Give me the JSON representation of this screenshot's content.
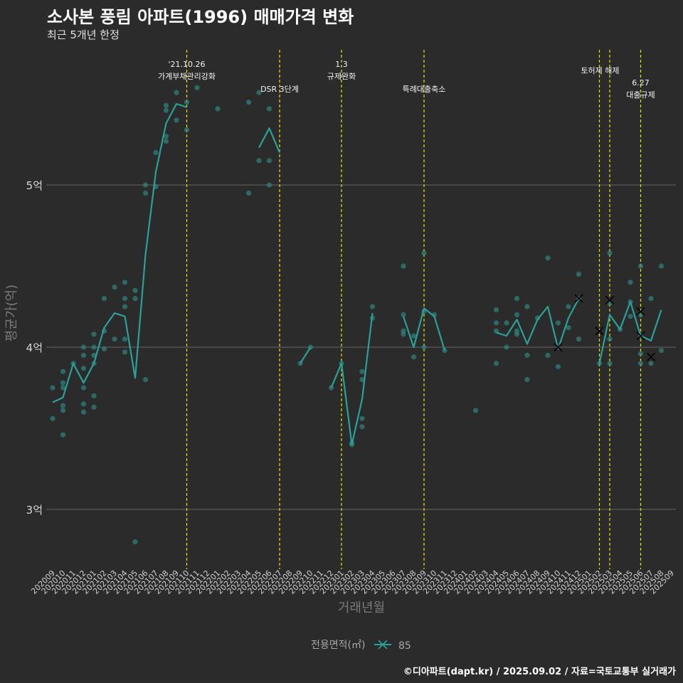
{
  "header": {
    "title": "소사본 풍림 아파트(1996) 매매가격 변화",
    "subtitle": "최근 5개년 한정"
  },
  "footer": {
    "credit": "©디아파트(dapt.kr) / 2025.09.02 / 자료=국토교통부 실거래가"
  },
  "colors": {
    "line": "#2aa198",
    "point": "#2e8b85",
    "guide": "#e6e600",
    "grid": "#5a5a5a",
    "cancel": "#000000"
  },
  "chart_data": {
    "type": "line",
    "title": "소사본 풍림 아파트(1996) 매매가격 변화",
    "xlabel": "거래년월",
    "ylabel": "평균가(억)",
    "ylim": [
      2.65,
      5.9
    ],
    "yticks": [
      {
        "value": 3,
        "label": "3억"
      },
      {
        "value": 4,
        "label": "4억"
      },
      {
        "value": 5,
        "label": "5억"
      }
    ],
    "months": [
      "202009",
      "202010",
      "202011",
      "202012",
      "202101",
      "202102",
      "202103",
      "202104",
      "202105",
      "202106",
      "202107",
      "202108",
      "202109",
      "202110",
      "202111",
      "202112",
      "202201",
      "202202",
      "202203",
      "202204",
      "202205",
      "202206",
      "202207",
      "202208",
      "202209",
      "202210",
      "202211",
      "202212",
      "202301",
      "202302",
      "202303",
      "202304",
      "202305",
      "202306",
      "202307",
      "202308",
      "202309",
      "202310",
      "202311",
      "202312",
      "202401",
      "202402",
      "202403",
      "202404",
      "202405",
      "202406",
      "202407",
      "202408",
      "202409",
      "202410",
      "202411",
      "202412",
      "202501",
      "202502",
      "202503",
      "202504",
      "202505",
      "202506",
      "202507",
      "202508",
      "202509"
    ],
    "legend": {
      "title": "전용면적(㎡)",
      "entries": [
        "85"
      ]
    },
    "events": [
      {
        "month": "202110",
        "lines": [
          "'21.10.26",
          "가계부채관리강화"
        ]
      },
      {
        "month": "202207",
        "lines": [
          "DSR 3단계"
        ]
      },
      {
        "month": "202301",
        "lines": [
          "1.3",
          "규제완화"
        ]
      },
      {
        "month": "202309",
        "lines": [
          "특례대출축소"
        ]
      },
      {
        "month": "202502",
        "lines": [
          "토허제 해제"
        ]
      },
      {
        "month": "202503",
        "lines": []
      },
      {
        "month": "202506",
        "lines": [
          "6.27",
          "대출규제"
        ]
      }
    ],
    "series": [
      {
        "name": "85",
        "segments": [
          [
            [
              "202009",
              3.66
            ],
            [
              "202010",
              3.69
            ],
            [
              "202011",
              3.9
            ],
            [
              "202012",
              3.78
            ],
            [
              "202101",
              3.9
            ],
            [
              "202102",
              4.12
            ],
            [
              "202103",
              4.21
            ],
            [
              "202104",
              4.19
            ],
            [
              "202105",
              3.81
            ],
            [
              "202106",
              4.57
            ],
            [
              "202107",
              5.08
            ],
            [
              "202108",
              5.38
            ],
            [
              "202109",
              5.5
            ],
            [
              "202110",
              5.48
            ]
          ],
          [
            [
              "202205",
              5.23
            ],
            [
              "202206",
              5.35
            ],
            [
              "202207",
              5.2
            ]
          ],
          [
            [
              "202209",
              3.9
            ],
            [
              "202210",
              4.0
            ]
          ],
          [
            [
              "202212",
              3.75
            ],
            [
              "202301",
              3.9
            ],
            [
              "202302",
              3.4
            ],
            [
              "202303",
              3.68
            ],
            [
              "202304",
              4.21
            ]
          ],
          [
            [
              "202307",
              4.19
            ],
            [
              "202308",
              4.0
            ],
            [
              "202309",
              4.24
            ],
            [
              "202310",
              4.19
            ],
            [
              "202311",
              3.98
            ]
          ],
          [
            [
              "202404",
              4.09
            ],
            [
              "202405",
              4.07
            ],
            [
              "202406",
              4.17
            ],
            [
              "202407",
              4.02
            ],
            [
              "202408",
              4.17
            ],
            [
              "202409",
              4.25
            ],
            [
              "202410",
              3.99
            ],
            [
              "202411",
              4.18
            ],
            [
              "202412",
              4.3
            ]
          ],
          [
            [
              "202502",
              3.9
            ],
            [
              "202503",
              4.2
            ],
            [
              "202504",
              4.11
            ],
            [
              "202505",
              4.28
            ],
            [
              "202506",
              4.07
            ],
            [
              "202507",
              4.04
            ],
            [
              "202508",
              4.23
            ]
          ]
        ],
        "points": [
          [
            "202009",
            3.75
          ],
          [
            "202009",
            3.56
          ],
          [
            "202010",
            3.78
          ],
          [
            "202010",
            3.75
          ],
          [
            "202010",
            3.64
          ],
          [
            "202010",
            3.61
          ],
          [
            "202010",
            3.46
          ],
          [
            "202010",
            3.85
          ],
          [
            "202011",
            3.9
          ],
          [
            "202012",
            4.0
          ],
          [
            "202012",
            3.95
          ],
          [
            "202012",
            3.87
          ],
          [
            "202012",
            3.75
          ],
          [
            "202012",
            3.65
          ],
          [
            "202012",
            3.6
          ],
          [
            "202101",
            4.08
          ],
          [
            "202101",
            4.0
          ],
          [
            "202101",
            3.95
          ],
          [
            "202101",
            3.9
          ],
          [
            "202101",
            3.7
          ],
          [
            "202101",
            3.63
          ],
          [
            "202102",
            4.3
          ],
          [
            "202102",
            4.1
          ],
          [
            "202102",
            3.99
          ],
          [
            "202103",
            4.37
          ],
          [
            "202103",
            4.05
          ],
          [
            "202104",
            4.4
          ],
          [
            "202104",
            4.3
          ],
          [
            "202104",
            4.25
          ],
          [
            "202104",
            4.05
          ],
          [
            "202104",
            3.97
          ],
          [
            "202105",
            4.35
          ],
          [
            "202105",
            4.3
          ],
          [
            "202105",
            2.8
          ],
          [
            "202106",
            5.0
          ],
          [
            "202106",
            4.95
          ],
          [
            "202106",
            3.8
          ],
          [
            "202107",
            5.2
          ],
          [
            "202107",
            4.99
          ],
          [
            "202108",
            5.49
          ],
          [
            "202108",
            5.46
          ],
          [
            "202108",
            5.3
          ],
          [
            "202108",
            5.27
          ],
          [
            "202109",
            5.57
          ],
          [
            "202109",
            5.4
          ],
          [
            "202110",
            5.51
          ],
          [
            "202110",
            5.34
          ],
          [
            "202111",
            5.6
          ],
          [
            "202201",
            5.47
          ],
          [
            "202204",
            5.51
          ],
          [
            "202204",
            4.95
          ],
          [
            "202205",
            5.57
          ],
          [
            "202205",
            5.15
          ],
          [
            "202206",
            5.47
          ],
          [
            "202206",
            5.15
          ],
          [
            "202206",
            5.0
          ],
          [
            "202209",
            3.9
          ],
          [
            "202210",
            4.0
          ],
          [
            "202212",
            3.75
          ],
          [
            "202301",
            3.9
          ],
          [
            "202302",
            3.41
          ],
          [
            "202302",
            3.4
          ],
          [
            "202303",
            3.85
          ],
          [
            "202303",
            3.8
          ],
          [
            "202303",
            3.56
          ],
          [
            "202303",
            3.51
          ],
          [
            "202304",
            4.25
          ],
          [
            "202304",
            4.18
          ],
          [
            "202307",
            4.5
          ],
          [
            "202307",
            4.2
          ],
          [
            "202307",
            4.1
          ],
          [
            "202307",
            4.08
          ],
          [
            "202308",
            4.07
          ],
          [
            "202308",
            3.94
          ],
          [
            "202309",
            4.58
          ],
          [
            "202309",
            4.22
          ],
          [
            "202309",
            4.0
          ],
          [
            "202310",
            4.2
          ],
          [
            "202311",
            3.98
          ],
          [
            "202402",
            3.61
          ],
          [
            "202404",
            4.23
          ],
          [
            "202404",
            4.15
          ],
          [
            "202404",
            4.1
          ],
          [
            "202404",
            3.9
          ],
          [
            "202405",
            4.15
          ],
          [
            "202405",
            4.0
          ],
          [
            "202406",
            4.3
          ],
          [
            "202406",
            4.2
          ],
          [
            "202406",
            4.1
          ],
          [
            "202406",
            4.08
          ],
          [
            "202407",
            4.25
          ],
          [
            "202407",
            3.95
          ],
          [
            "202407",
            3.8
          ],
          [
            "202408",
            4.18
          ],
          [
            "202409",
            4.55
          ],
          [
            "202409",
            3.95
          ],
          [
            "202410",
            4.15
          ],
          [
            "202410",
            3.88
          ],
          [
            "202411",
            4.25
          ],
          [
            "202411",
            4.12
          ],
          [
            "202412",
            4.45
          ],
          [
            "202412",
            4.3
          ],
          [
            "202412",
            4.05
          ],
          [
            "202502",
            3.9
          ],
          [
            "202503",
            4.58
          ],
          [
            "202503",
            4.27
          ],
          [
            "202503",
            4.05
          ],
          [
            "202503",
            3.9
          ],
          [
            "202504",
            4.11
          ],
          [
            "202505",
            4.4
          ],
          [
            "202505",
            4.28
          ],
          [
            "202505",
            4.19
          ],
          [
            "202506",
            4.5
          ],
          [
            "202506",
            4.2
          ],
          [
            "202506",
            4.07
          ],
          [
            "202506",
            3.96
          ],
          [
            "202506",
            3.9
          ],
          [
            "202507",
            4.3
          ],
          [
            "202507",
            3.9
          ],
          [
            "202508",
            4.5
          ],
          [
            "202508",
            3.98
          ]
        ],
        "cancelled": [
          [
            "202410",
            4.0
          ],
          [
            "202412",
            4.3
          ],
          [
            "202502",
            4.1
          ],
          [
            "202503",
            4.29
          ],
          [
            "202506",
            4.07
          ],
          [
            "202506",
            4.22
          ],
          [
            "202507",
            3.94
          ]
        ]
      }
    ]
  }
}
